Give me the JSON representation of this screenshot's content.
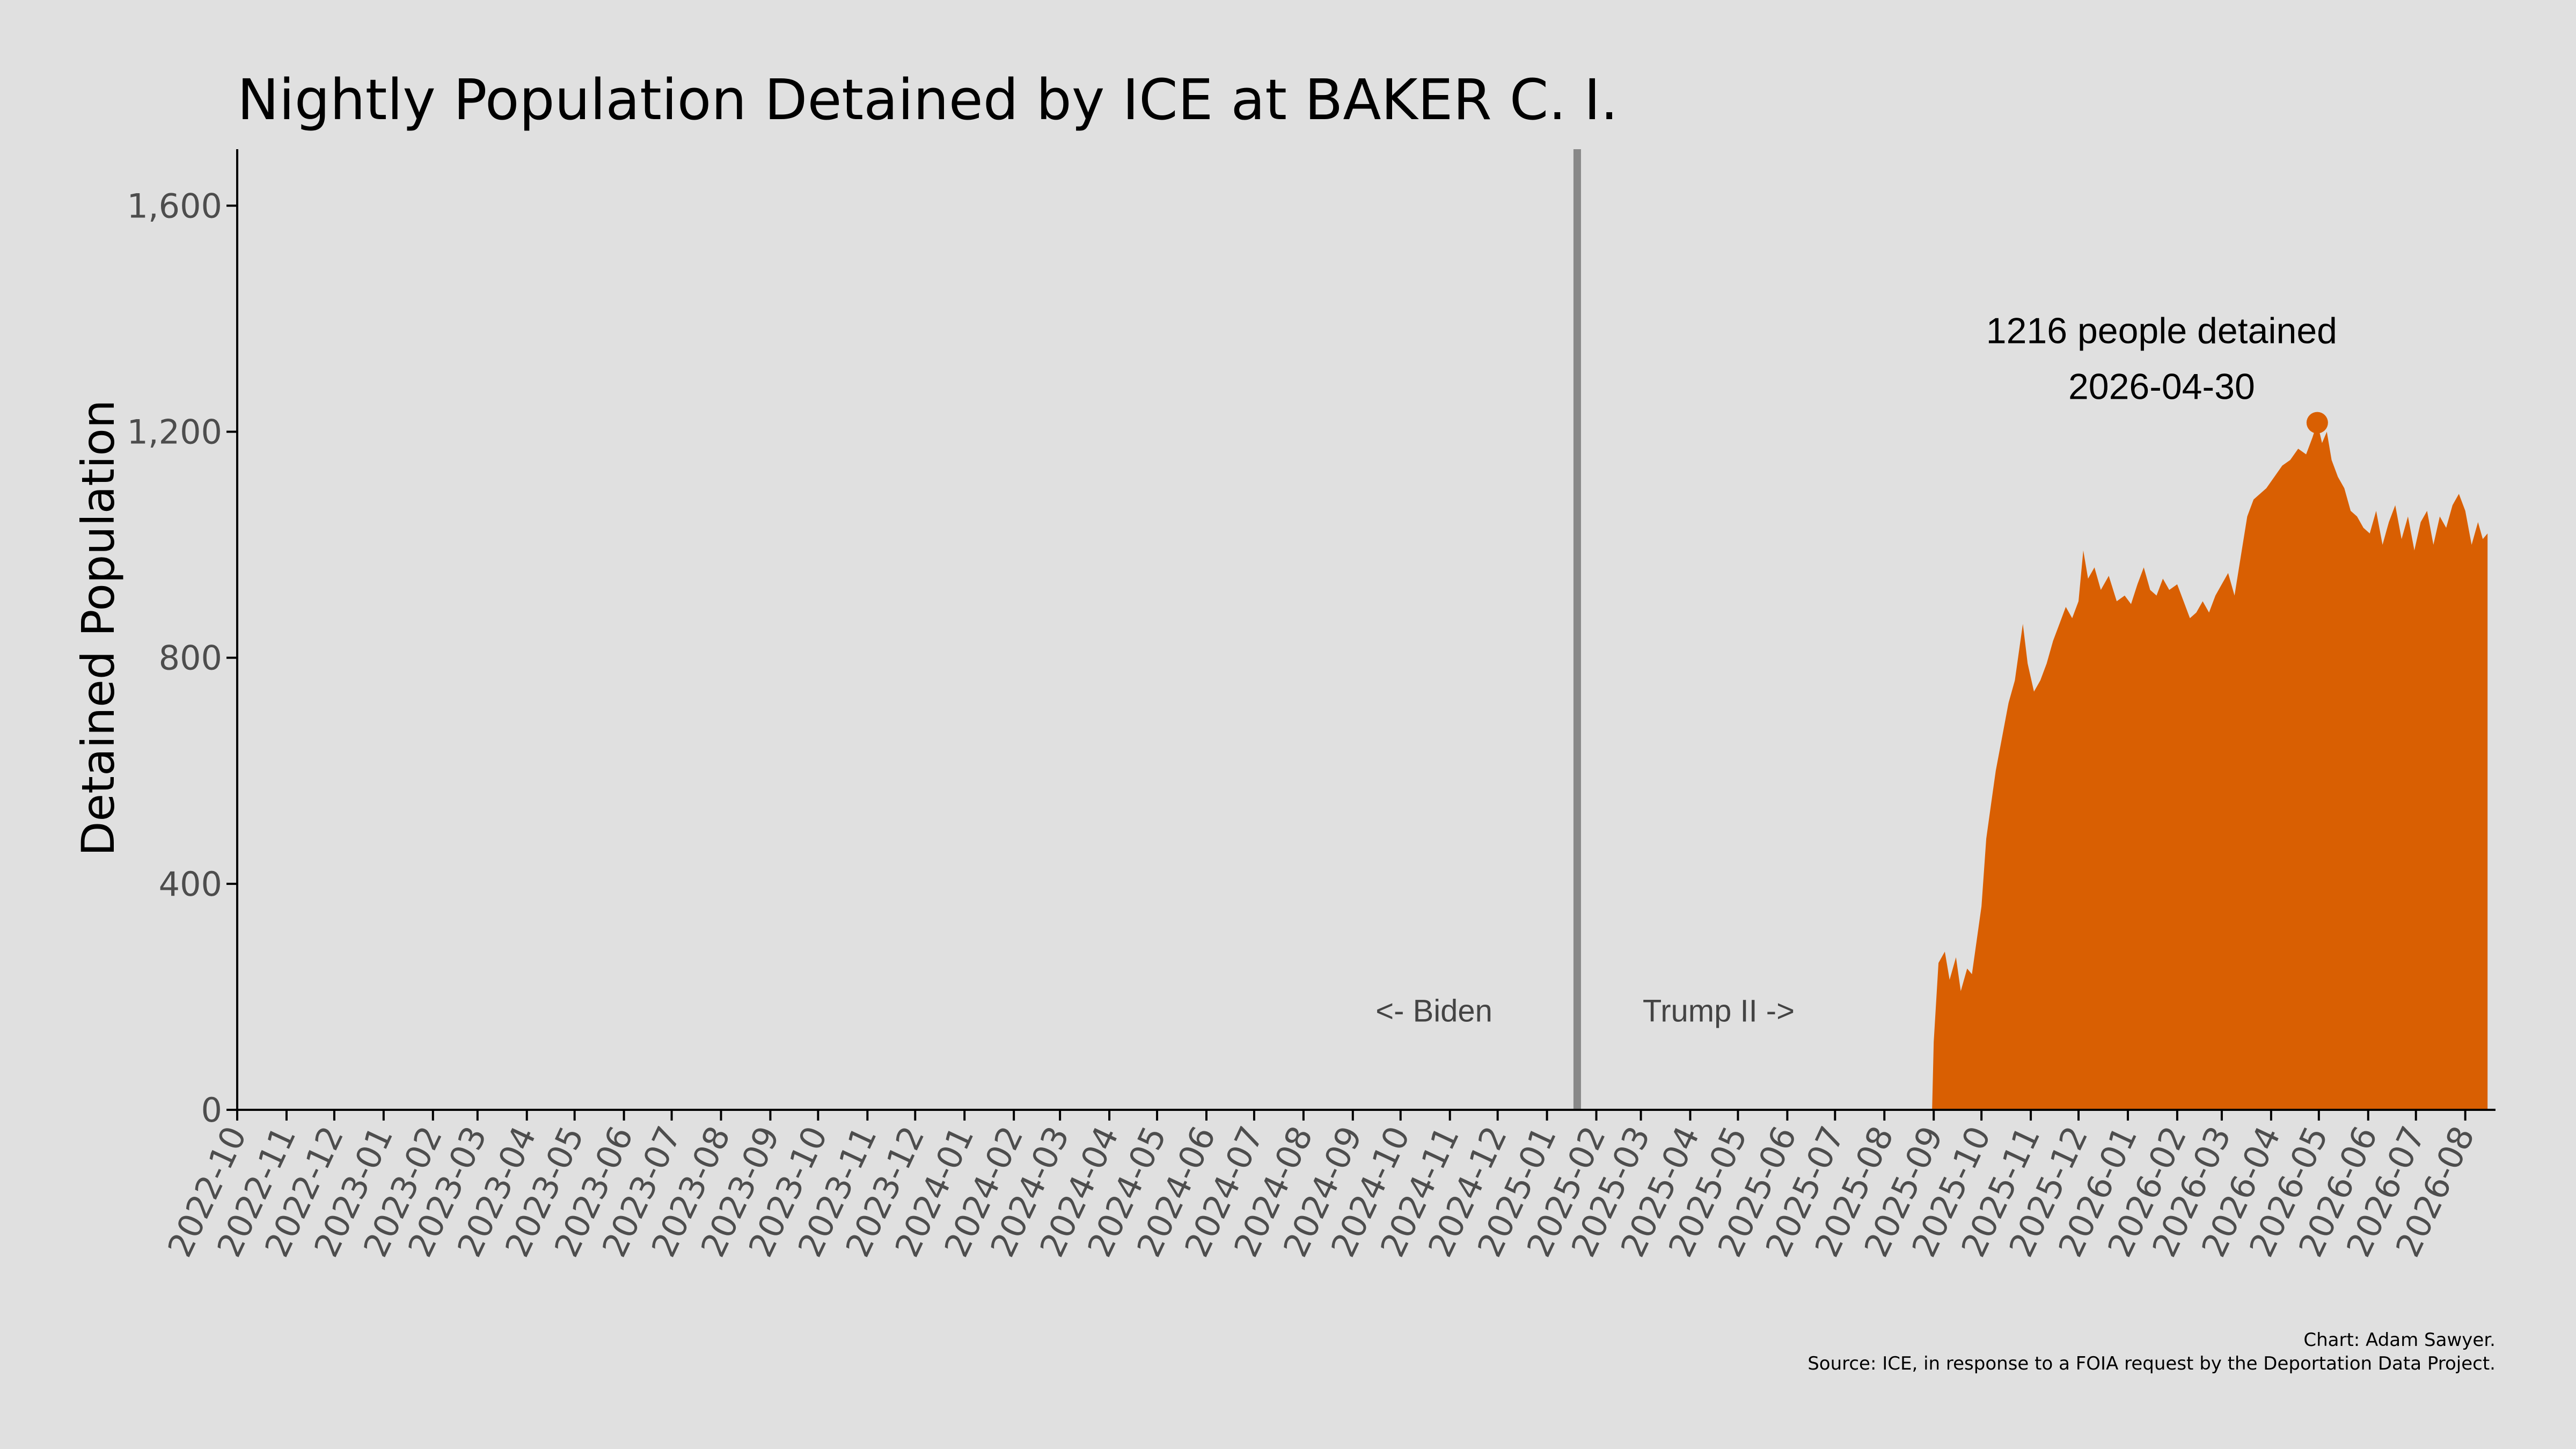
{
  "chart_data": {
    "type": "area",
    "title": "Nightly Population Detained by ICE at BAKER C. I.",
    "xlabel": "",
    "ylabel": "Detained Population",
    "ylim": [
      0,
      1700
    ],
    "xlim": [
      "2022-10-01",
      "2026-08-20"
    ],
    "y_ticks": [
      0,
      400,
      800,
      1200,
      1600
    ],
    "y_tick_labels": [
      "0",
      "400",
      "800",
      "1,200",
      "1,600"
    ],
    "x_ticks": [
      "2022-10-01",
      "2022-11-01",
      "2022-12-01",
      "2023-01-01",
      "2023-02-01",
      "2023-03-01",
      "2023-04-01",
      "2023-05-01",
      "2023-06-01",
      "2023-07-01",
      "2023-08-01",
      "2023-09-01",
      "2023-10-01",
      "2023-11-01",
      "2023-12-01",
      "2024-01-01",
      "2024-02-01",
      "2024-03-01",
      "2024-04-01",
      "2024-05-01",
      "2024-06-01",
      "2024-07-01",
      "2024-08-01",
      "2024-09-01",
      "2024-10-01",
      "2024-11-01",
      "2024-12-01",
      "2025-01-01",
      "2025-02-01",
      "2025-03-01",
      "2025-04-01",
      "2025-05-01",
      "2025-06-01",
      "2025-07-01",
      "2025-08-01",
      "2025-09-01",
      "2025-10-01",
      "2025-11-01",
      "2025-12-01",
      "2026-01-01",
      "2026-02-01",
      "2026-03-01",
      "2026-04-01",
      "2026-05-01",
      "2026-06-01",
      "2026-07-01",
      "2026-08-01"
    ],
    "x_tick_labels": [
      "2022-10",
      "2022-11",
      "2022-12",
      "2023-01",
      "2023-02",
      "2023-03",
      "2023-04",
      "2023-05",
      "2023-06",
      "2023-07",
      "2023-08",
      "2023-09",
      "2023-10",
      "2023-11",
      "2023-12",
      "2024-01",
      "2024-02",
      "2024-03",
      "2024-04",
      "2024-05",
      "2024-06",
      "2024-07",
      "2024-08",
      "2024-09",
      "2024-10",
      "2024-11",
      "2024-12",
      "2025-01",
      "2025-02",
      "2025-03",
      "2025-04",
      "2025-05",
      "2025-06",
      "2025-07",
      "2025-08",
      "2025-09",
      "2025-10",
      "2025-11",
      "2025-12",
      "2026-01",
      "2026-02",
      "2026-03",
      "2026-04",
      "2026-05",
      "2026-06",
      "2026-07",
      "2026-08"
    ],
    "series": [
      {
        "color": "#d95f02",
        "points": [
          [
            "2025-08-31",
            0
          ],
          [
            "2025-09-01",
            120
          ],
          [
            "2025-09-04",
            260
          ],
          [
            "2025-09-08",
            280
          ],
          [
            "2025-09-11",
            230
          ],
          [
            "2025-09-15",
            270
          ],
          [
            "2025-09-18",
            210
          ],
          [
            "2025-09-22",
            250
          ],
          [
            "2025-09-25",
            240
          ],
          [
            "2025-09-28",
            300
          ],
          [
            "2025-10-01",
            360
          ],
          [
            "2025-10-04",
            480
          ],
          [
            "2025-10-07",
            540
          ],
          [
            "2025-10-10",
            600
          ],
          [
            "2025-10-14",
            660
          ],
          [
            "2025-10-18",
            720
          ],
          [
            "2025-10-22",
            760
          ],
          [
            "2025-10-25",
            820
          ],
          [
            "2025-10-27",
            860
          ],
          [
            "2025-10-30",
            790
          ],
          [
            "2025-11-03",
            740
          ],
          [
            "2025-11-07",
            760
          ],
          [
            "2025-11-11",
            790
          ],
          [
            "2025-11-15",
            830
          ],
          [
            "2025-11-19",
            860
          ],
          [
            "2025-11-23",
            890
          ],
          [
            "2025-11-27",
            870
          ],
          [
            "2025-12-01",
            900
          ],
          [
            "2025-12-04",
            990
          ],
          [
            "2025-12-07",
            940
          ],
          [
            "2025-12-11",
            960
          ],
          [
            "2025-12-15",
            920
          ],
          [
            "2025-12-20",
            945
          ],
          [
            "2025-12-25",
            900
          ],
          [
            "2025-12-30",
            910
          ],
          [
            "2026-01-03",
            895
          ],
          [
            "2026-01-07",
            930
          ],
          [
            "2026-01-11",
            960
          ],
          [
            "2026-01-15",
            920
          ],
          [
            "2026-01-19",
            910
          ],
          [
            "2026-01-23",
            940
          ],
          [
            "2026-01-27",
            920
          ],
          [
            "2026-02-01",
            930
          ],
          [
            "2026-02-05",
            900
          ],
          [
            "2026-02-09",
            870
          ],
          [
            "2026-02-13",
            880
          ],
          [
            "2026-02-17",
            900
          ],
          [
            "2026-02-21",
            880
          ],
          [
            "2026-02-25",
            910
          ],
          [
            "2026-03-01",
            930
          ],
          [
            "2026-03-05",
            950
          ],
          [
            "2026-03-09",
            910
          ],
          [
            "2026-03-13",
            980
          ],
          [
            "2026-03-17",
            1050
          ],
          [
            "2026-03-21",
            1080
          ],
          [
            "2026-03-25",
            1090
          ],
          [
            "2026-03-29",
            1100
          ],
          [
            "2026-04-03",
            1120
          ],
          [
            "2026-04-08",
            1140
          ],
          [
            "2026-04-13",
            1150
          ],
          [
            "2026-04-18",
            1170
          ],
          [
            "2026-04-23",
            1160
          ],
          [
            "2026-04-27",
            1190
          ],
          [
            "2026-04-30",
            1216
          ],
          [
            "2026-05-03",
            1180
          ],
          [
            "2026-05-06",
            1200
          ],
          [
            "2026-05-09",
            1150
          ],
          [
            "2026-05-13",
            1120
          ],
          [
            "2026-05-17",
            1100
          ],
          [
            "2026-05-21",
            1060
          ],
          [
            "2026-05-25",
            1050
          ],
          [
            "2026-05-29",
            1030
          ],
          [
            "2026-06-02",
            1020
          ],
          [
            "2026-06-06",
            1060
          ],
          [
            "2026-06-10",
            1000
          ],
          [
            "2026-06-14",
            1040
          ],
          [
            "2026-06-18",
            1070
          ],
          [
            "2026-06-22",
            1010
          ],
          [
            "2026-06-26",
            1050
          ],
          [
            "2026-06-30",
            990
          ],
          [
            "2026-07-04",
            1040
          ],
          [
            "2026-07-08",
            1060
          ],
          [
            "2026-07-12",
            1000
          ],
          [
            "2026-07-16",
            1050
          ],
          [
            "2026-07-20",
            1030
          ],
          [
            "2026-07-24",
            1070
          ],
          [
            "2026-07-28",
            1090
          ],
          [
            "2026-08-01",
            1060
          ],
          [
            "2026-08-05",
            1000
          ],
          [
            "2026-08-09",
            1040
          ],
          [
            "2026-08-12",
            1010
          ],
          [
            "2026-08-15",
            1020
          ],
          [
            "2026-08-15",
            0
          ]
        ]
      }
    ],
    "peak": {
      "date": "2026-04-30",
      "value": 1216,
      "label_line1": "1216 people detained",
      "label_line2": "2026-04-30",
      "color": "#d95f02"
    },
    "divider": {
      "date": "2025-01-20",
      "color": "#888888",
      "left_label": "<- Biden",
      "right_label": "Trump II ->",
      "label_value": 175
    },
    "caption_line1": "Chart: Adam Sawyer.",
    "caption_line2": "Source: ICE, in response to a FOIA request by the Deportation Data Project.",
    "grid": false,
    "legend": "none",
    "background": "#e0e0e0"
  }
}
